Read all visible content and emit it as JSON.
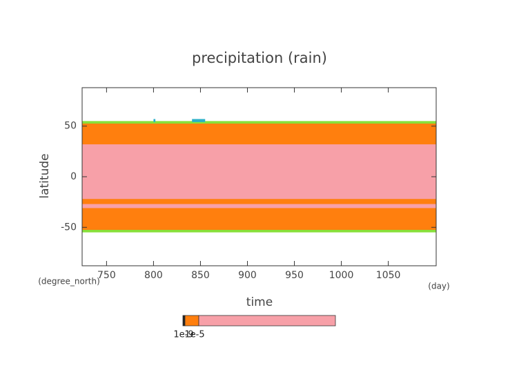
{
  "chart_data": {
    "type": "heatmap",
    "title": "precipitation (rain)",
    "x_label": "time",
    "y_label": "latitude",
    "x_unit": "(day)",
    "y_unit": "(degree_north)",
    "xlim": [
      724,
      1101
    ],
    "xticks": [
      750,
      800,
      850,
      900,
      950,
      1000,
      1050
    ],
    "ylim": [
      -88,
      88
    ],
    "yticks": [
      -50,
      0,
      50
    ],
    "bands": [
      {
        "lat_min": -55,
        "lat_max": 55,
        "color": "#88e03a"
      },
      {
        "lat_min": -52.5,
        "lat_max": 52.5,
        "color": "#ff7f0e"
      },
      {
        "lat_min": -22,
        "lat_max": 32,
        "color": "#f7a0a8"
      },
      {
        "lat_min": -31,
        "lat_max": -27,
        "color": "#f7a0a8"
      }
    ],
    "spots": [
      {
        "time_min": 800,
        "time_max": 802,
        "lat_min": 54,
        "lat_max": 57,
        "color": "#2ab0c8"
      },
      {
        "time_min": 841,
        "time_max": 855,
        "lat_min": 54,
        "lat_max": 57,
        "color": "#2ab0c8"
      }
    ],
    "colorbar": {
      "colors": [
        "#222222",
        "#ff7f0e",
        "#f7a0a8"
      ],
      "labels": [
        "1e-9",
        "1e-5"
      ]
    }
  }
}
